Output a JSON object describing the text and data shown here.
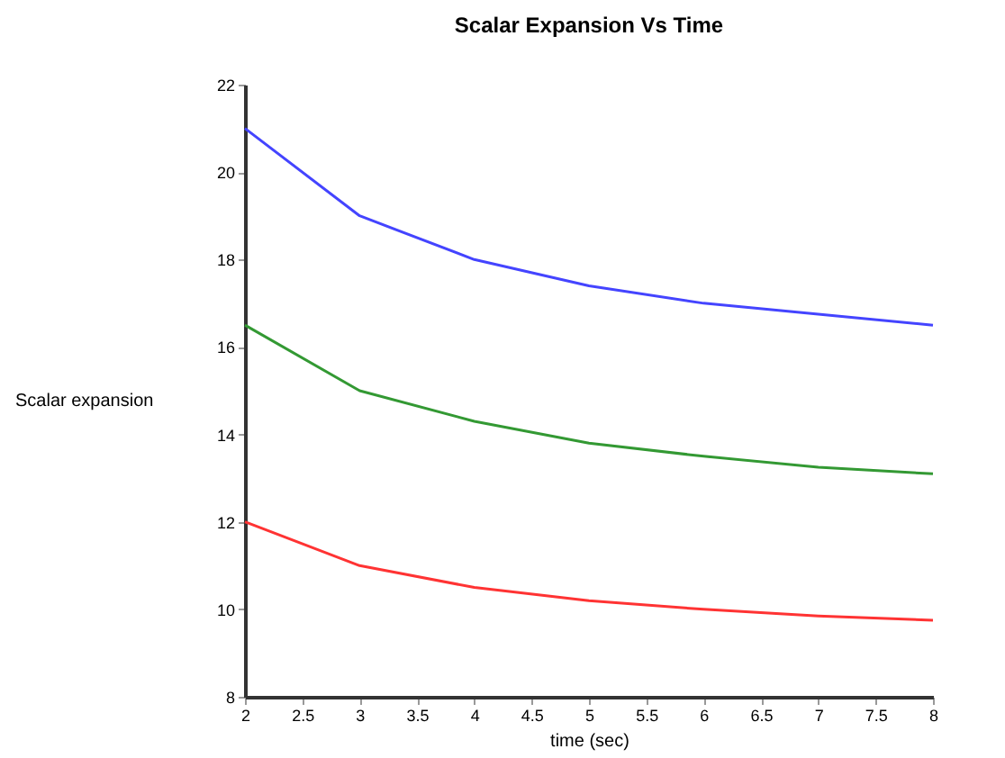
{
  "chart_data": {
    "type": "line",
    "title": "Scalar Expansion Vs Time",
    "xlabel": "time (sec)",
    "ylabel": "Scalar expansion",
    "x": [
      2,
      3,
      4,
      5,
      6,
      7,
      8
    ],
    "series": [
      {
        "color": "#4444ff",
        "values": [
          21,
          19,
          18,
          17.4,
          17,
          16.75,
          16.5
        ]
      },
      {
        "color": "#339933",
        "values": [
          16.5,
          15,
          14.3,
          13.8,
          13.5,
          13.25,
          13.1
        ]
      },
      {
        "color": "#ff3333",
        "values": [
          12,
          11,
          10.5,
          10.2,
          10,
          9.85,
          9.75
        ]
      }
    ],
    "xlim": [
      2,
      8
    ],
    "xticks": [
      2,
      2.5,
      3,
      3.5,
      4,
      4.5,
      5,
      5.5,
      6,
      6.5,
      7,
      7.5,
      8
    ],
    "ylim": [
      8,
      22
    ],
    "yticks": [
      8,
      10,
      12,
      14,
      16,
      18,
      20,
      22
    ],
    "grid": false,
    "legend": false,
    "marker": "none",
    "line_style": "solid"
  }
}
